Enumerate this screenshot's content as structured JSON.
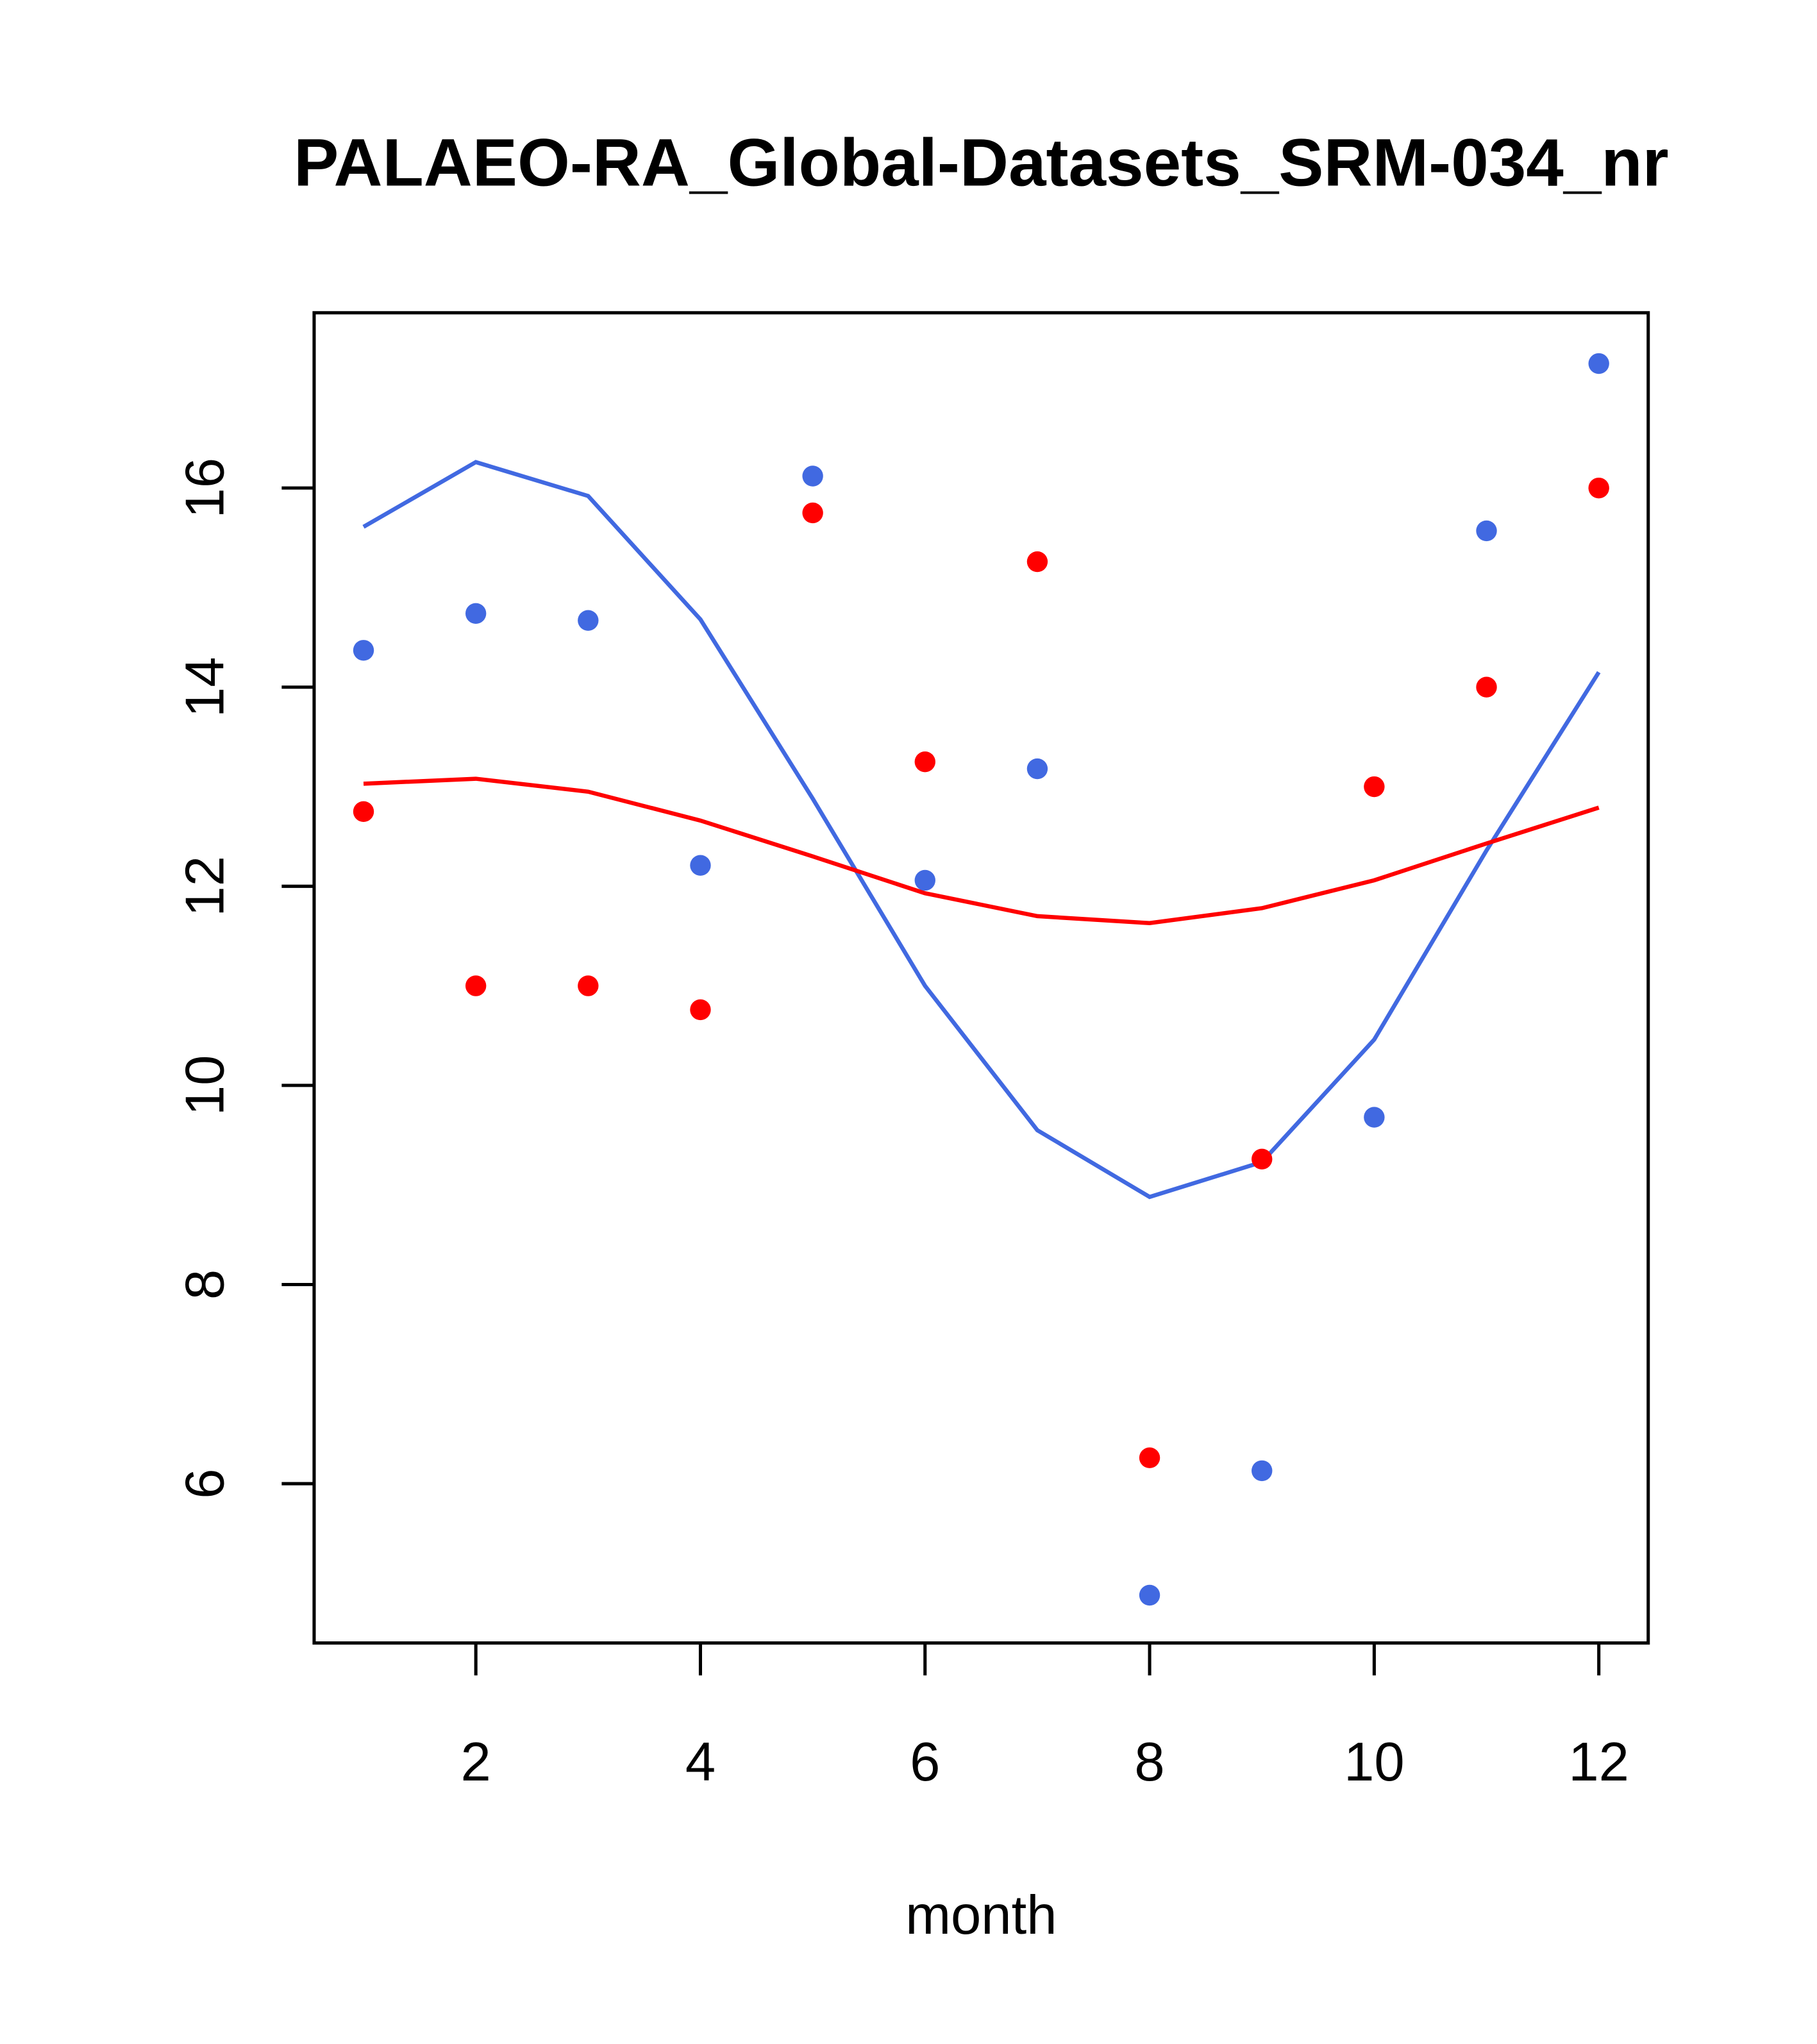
{
  "chart_data": {
    "type": "scatter",
    "title": "PALAEO-RA_Global-Datasets_SRM-034_nr",
    "xlabel": "month",
    "ylabel": "",
    "xlim": [
      0.56,
      12.44
    ],
    "ylim": [
      4.4,
      17.76
    ],
    "xticks": [
      2,
      4,
      6,
      8,
      10,
      12
    ],
    "yticks": [
      6,
      8,
      10,
      12,
      14,
      16
    ],
    "grid": false,
    "x": [
      1,
      2,
      3,
      4,
      5,
      6,
      7,
      8,
      9,
      10,
      11,
      12
    ],
    "series": [
      {
        "name": "blue points",
        "kind": "points",
        "color": "#4169E1",
        "values": [
          14.37,
          14.74,
          14.67,
          12.21,
          16.12,
          12.06,
          13.18,
          4.88,
          6.13,
          9.68,
          15.57,
          17.25
        ]
      },
      {
        "name": "red points",
        "kind": "points",
        "color": "#FF0000",
        "values": [
          12.75,
          11.0,
          11.0,
          10.76,
          15.75,
          13.25,
          15.26,
          6.26,
          9.26,
          13.0,
          14.0,
          16.0
        ]
      },
      {
        "name": "blue line",
        "kind": "line",
        "color": "#4169E1",
        "values": [
          15.61,
          16.26,
          15.92,
          14.68,
          12.88,
          11.0,
          9.55,
          8.88,
          9.23,
          10.46,
          12.36,
          14.15
        ]
      },
      {
        "name": "red line",
        "kind": "line",
        "color": "#FF0000",
        "values": [
          13.03,
          13.08,
          12.95,
          12.66,
          12.3,
          11.93,
          11.7,
          11.63,
          11.78,
          12.06,
          12.43,
          12.79
        ]
      }
    ]
  }
}
